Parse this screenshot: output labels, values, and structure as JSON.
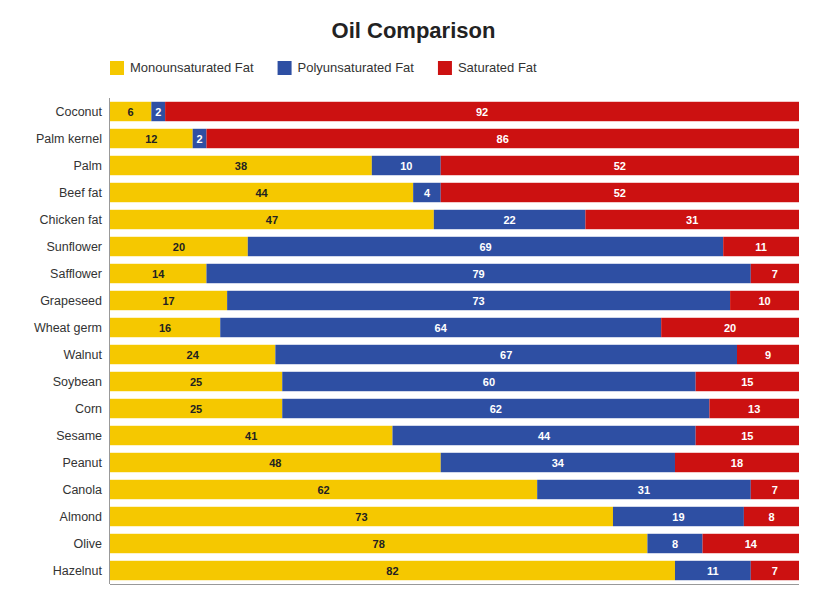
{
  "chart_data": {
    "type": "bar",
    "title": "Oil Comparison",
    "orientation": "horizontal",
    "stacked": true,
    "data_labels": true,
    "tick_labels": "y",
    "grid": false,
    "legend": "top",
    "categories": [
      "Coconut",
      "Palm kernel",
      "Palm",
      "Beef fat",
      "Chicken fat",
      "Sunflower",
      "Safflower",
      "Grapeseed",
      "Wheat germ",
      "Walnut",
      "Soybean",
      "Corn",
      "Sesame",
      "Peanut",
      "Canola",
      "Almond",
      "Olive",
      "Hazelnut"
    ],
    "xlim": [
      0,
      100
    ],
    "series": [
      {
        "name": "Monounsaturated Fat",
        "color": "#F5C800",
        "values": [
          6,
          12,
          38,
          44,
          47,
          20,
          14,
          17,
          16,
          24,
          25,
          25,
          41,
          48,
          62,
          73,
          78,
          82
        ]
      },
      {
        "name": "Polyunsaturated Fat",
        "color": "#2E4FA3",
        "values": [
          2,
          2,
          10,
          4,
          22,
          69,
          79,
          73,
          64,
          67,
          60,
          62,
          44,
          34,
          31,
          19,
          8,
          11
        ]
      },
      {
        "name": "Saturated Fat",
        "color": "#CC1111",
        "values": [
          92,
          86,
          52,
          52,
          31,
          11,
          7,
          10,
          20,
          9,
          15,
          13,
          15,
          18,
          7,
          8,
          14,
          7
        ]
      }
    ]
  }
}
